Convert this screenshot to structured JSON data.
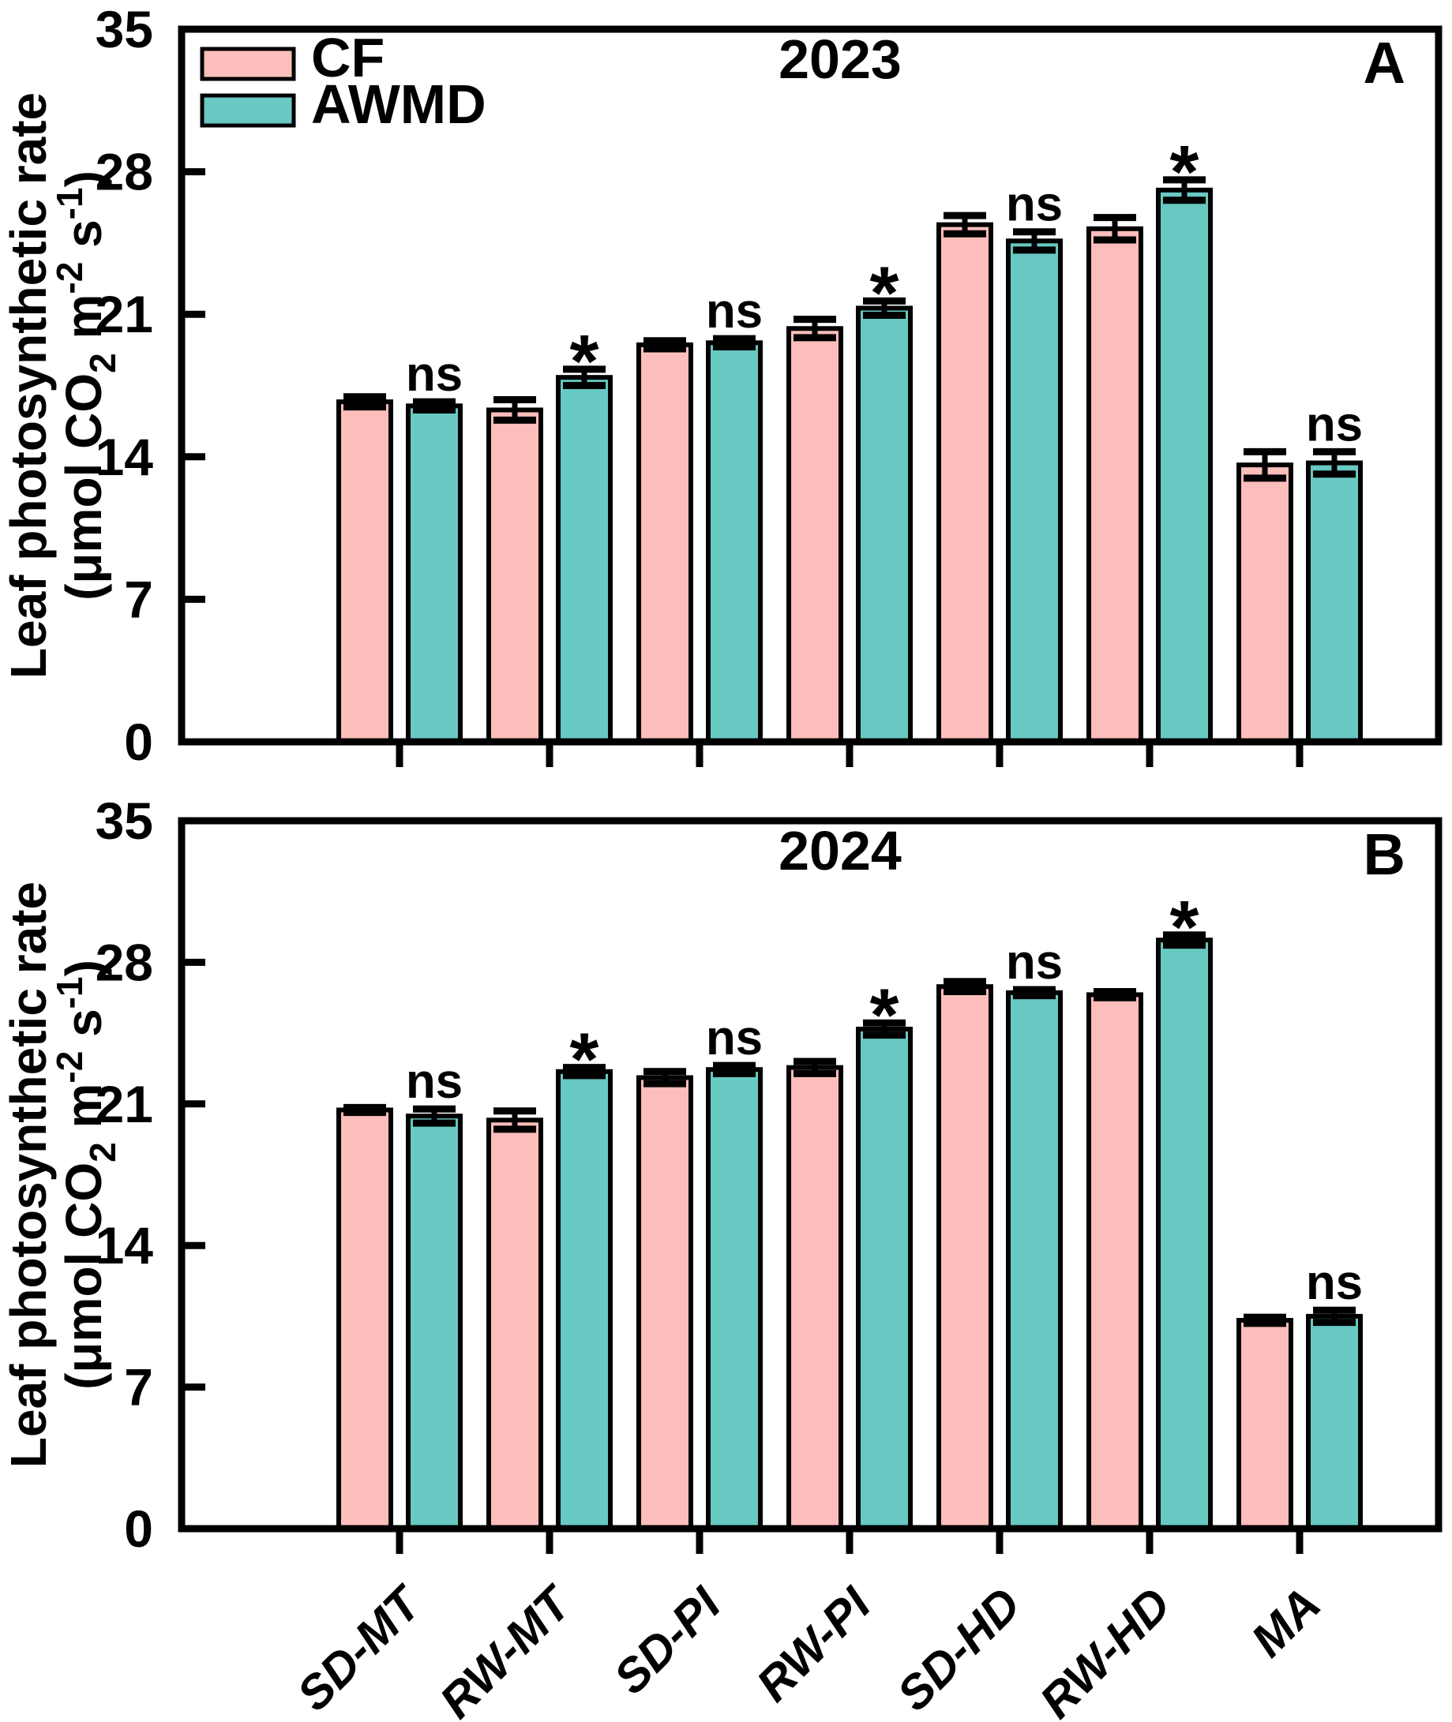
{
  "figure": {
    "background": "#FFFFFF",
    "axis_color": "#000000",
    "ylabel_line1": "Leaf photosynthetic rate",
    "ylabel_line2_parts": [
      {
        "text": "(μmol CO",
        "style": "normal"
      },
      {
        "text": "2",
        "style": "sub"
      },
      {
        "text": " m",
        "style": "normal"
      },
      {
        "text": "-2",
        "style": "sup"
      },
      {
        "text": " s",
        "style": "normal"
      },
      {
        "text": "-1",
        "style": "sup"
      },
      {
        "text": ")",
        "style": "normal"
      }
    ]
  },
  "legend": {
    "position": "top-left-panel-A",
    "items": [
      {
        "label": "CF",
        "color": "#FCBEBB"
      },
      {
        "label": "AWMD",
        "color": "#68C8C2"
      }
    ]
  },
  "chart_data": [
    {
      "type": "bar",
      "panel_letter": "A",
      "title": "2023",
      "ylabel": "Leaf photosynthetic rate (μmol CO2 m-2 s-1)",
      "ylim": [
        0,
        35
      ],
      "yticks": [
        0,
        7,
        14,
        21,
        28,
        35
      ],
      "grid": false,
      "categories": [
        "SD-MT",
        "RW-MT",
        "SD-PI",
        "RW-PI",
        "SD-HD",
        "RW-HD",
        "MA"
      ],
      "series": [
        {
          "name": "CF",
          "values": [
            16.7,
            16.3,
            19.5,
            20.3,
            25.4,
            25.2,
            13.6
          ],
          "errors": [
            0.25,
            0.5,
            0.2,
            0.45,
            0.45,
            0.55,
            0.65
          ]
        },
        {
          "name": "AWMD",
          "values": [
            16.5,
            17.9,
            19.6,
            21.3,
            24.6,
            27.1,
            13.7
          ],
          "errors": [
            0.2,
            0.4,
            0.2,
            0.35,
            0.45,
            0.5,
            0.55
          ]
        }
      ],
      "significance": [
        "ns",
        "*",
        "ns",
        "*",
        "ns",
        "*",
        "ns"
      ],
      "show_x_labels": false,
      "show_legend": true
    },
    {
      "type": "bar",
      "panel_letter": "B",
      "title": "2024",
      "ylabel": "Leaf photosynthetic rate (μmol CO2 m-2 s-1)",
      "ylim": [
        0,
        35
      ],
      "yticks": [
        0,
        7,
        14,
        21,
        28,
        35
      ],
      "grid": false,
      "categories": [
        "SD-MT",
        "RW-MT",
        "SD-PI",
        "RW-PI",
        "SD-HD",
        "RW-HD",
        "MA"
      ],
      "series": [
        {
          "name": "CF",
          "values": [
            20.7,
            20.2,
            22.3,
            22.8,
            26.8,
            26.4,
            10.3
          ],
          "errors": [
            0.12,
            0.45,
            0.3,
            0.3,
            0.25,
            0.15,
            0.15
          ]
        },
        {
          "name": "AWMD",
          "values": [
            20.4,
            22.6,
            22.7,
            24.7,
            26.5,
            29.1,
            10.5
          ],
          "errors": [
            0.35,
            0.2,
            0.2,
            0.3,
            0.15,
            0.25,
            0.3
          ]
        }
      ],
      "significance": [
        "ns",
        "*",
        "ns",
        "*",
        "ns",
        "*",
        "ns"
      ],
      "show_x_labels": true,
      "show_legend": false
    }
  ]
}
